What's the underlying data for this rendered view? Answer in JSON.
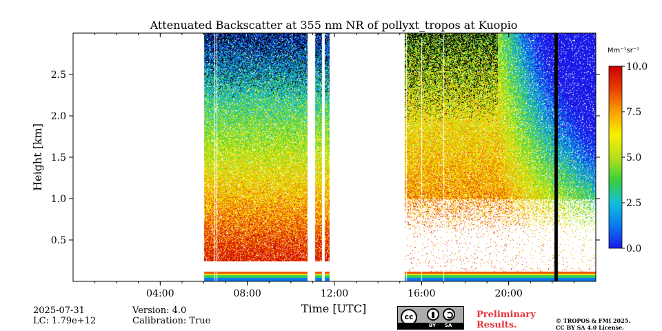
{
  "chart_data": {
    "type": "heatmap",
    "title": "Attenuated Backscatter at 355 nm NR of pollyxt_tropos at Kuopio",
    "xlabel": "Time [UTC]",
    "ylabel": "Height [km]",
    "xlim": [
      0,
      24
    ],
    "ylim": [
      0,
      3.0
    ],
    "x_ticks": [
      4,
      8,
      12,
      16,
      20
    ],
    "x_tick_labels": [
      "04:00",
      "08:00",
      "12:00",
      "16:00",
      "20:00"
    ],
    "x_minor_step": 1,
    "y_ticks": [
      0.5,
      1.0,
      1.5,
      2.0,
      2.5
    ],
    "y_tick_labels": [
      "0.5",
      "1.0",
      "1.5",
      "2.0",
      "2.5"
    ],
    "colorbar": {
      "unit": "Mm⁻¹sr⁻¹",
      "range": [
        0.0,
        10.0
      ],
      "ticks": [
        0.0,
        2.5,
        5.0,
        7.5,
        10.0
      ],
      "tick_labels": [
        "0.0",
        "2.5",
        "5.0",
        "7.5",
        "10.0"
      ],
      "colormap": [
        "#1a1ae8",
        "#0a7af0",
        "#10c0d8",
        "#3ad03a",
        "#b8e01a",
        "#f8f000",
        "#f8a000",
        "#e84000",
        "#c80000"
      ]
    },
    "data_segments": [
      {
        "start": 6.0,
        "end": 10.75
      },
      {
        "start": 11.1,
        "end": 11.4
      },
      {
        "start": 11.55,
        "end": 11.75
      },
      {
        "start": 15.2,
        "end": 24.0
      }
    ],
    "blank_lines": [
      6.5,
      6.6,
      15.3,
      16.0,
      17.0
    ],
    "black_columns": [
      22.15
    ],
    "overlap_band_km": [
      0.0,
      0.12
    ]
  },
  "footer": {
    "date": "2025-07-31",
    "lc": "LC: 1.79e+12",
    "version": "Version: 4.0",
    "calibration": "Calibration: True",
    "preliminary_line1": "Preliminary",
    "preliminary_line2": "Results.",
    "copyright_line1": "© TROPOS & FMI 2025.",
    "copyright_line2": "CC BY SA 4.0 License.",
    "license_cc": "cc",
    "license_by": "BY",
    "license_sa": "SA"
  },
  "colors": {
    "preliminary": "#e8353b"
  }
}
